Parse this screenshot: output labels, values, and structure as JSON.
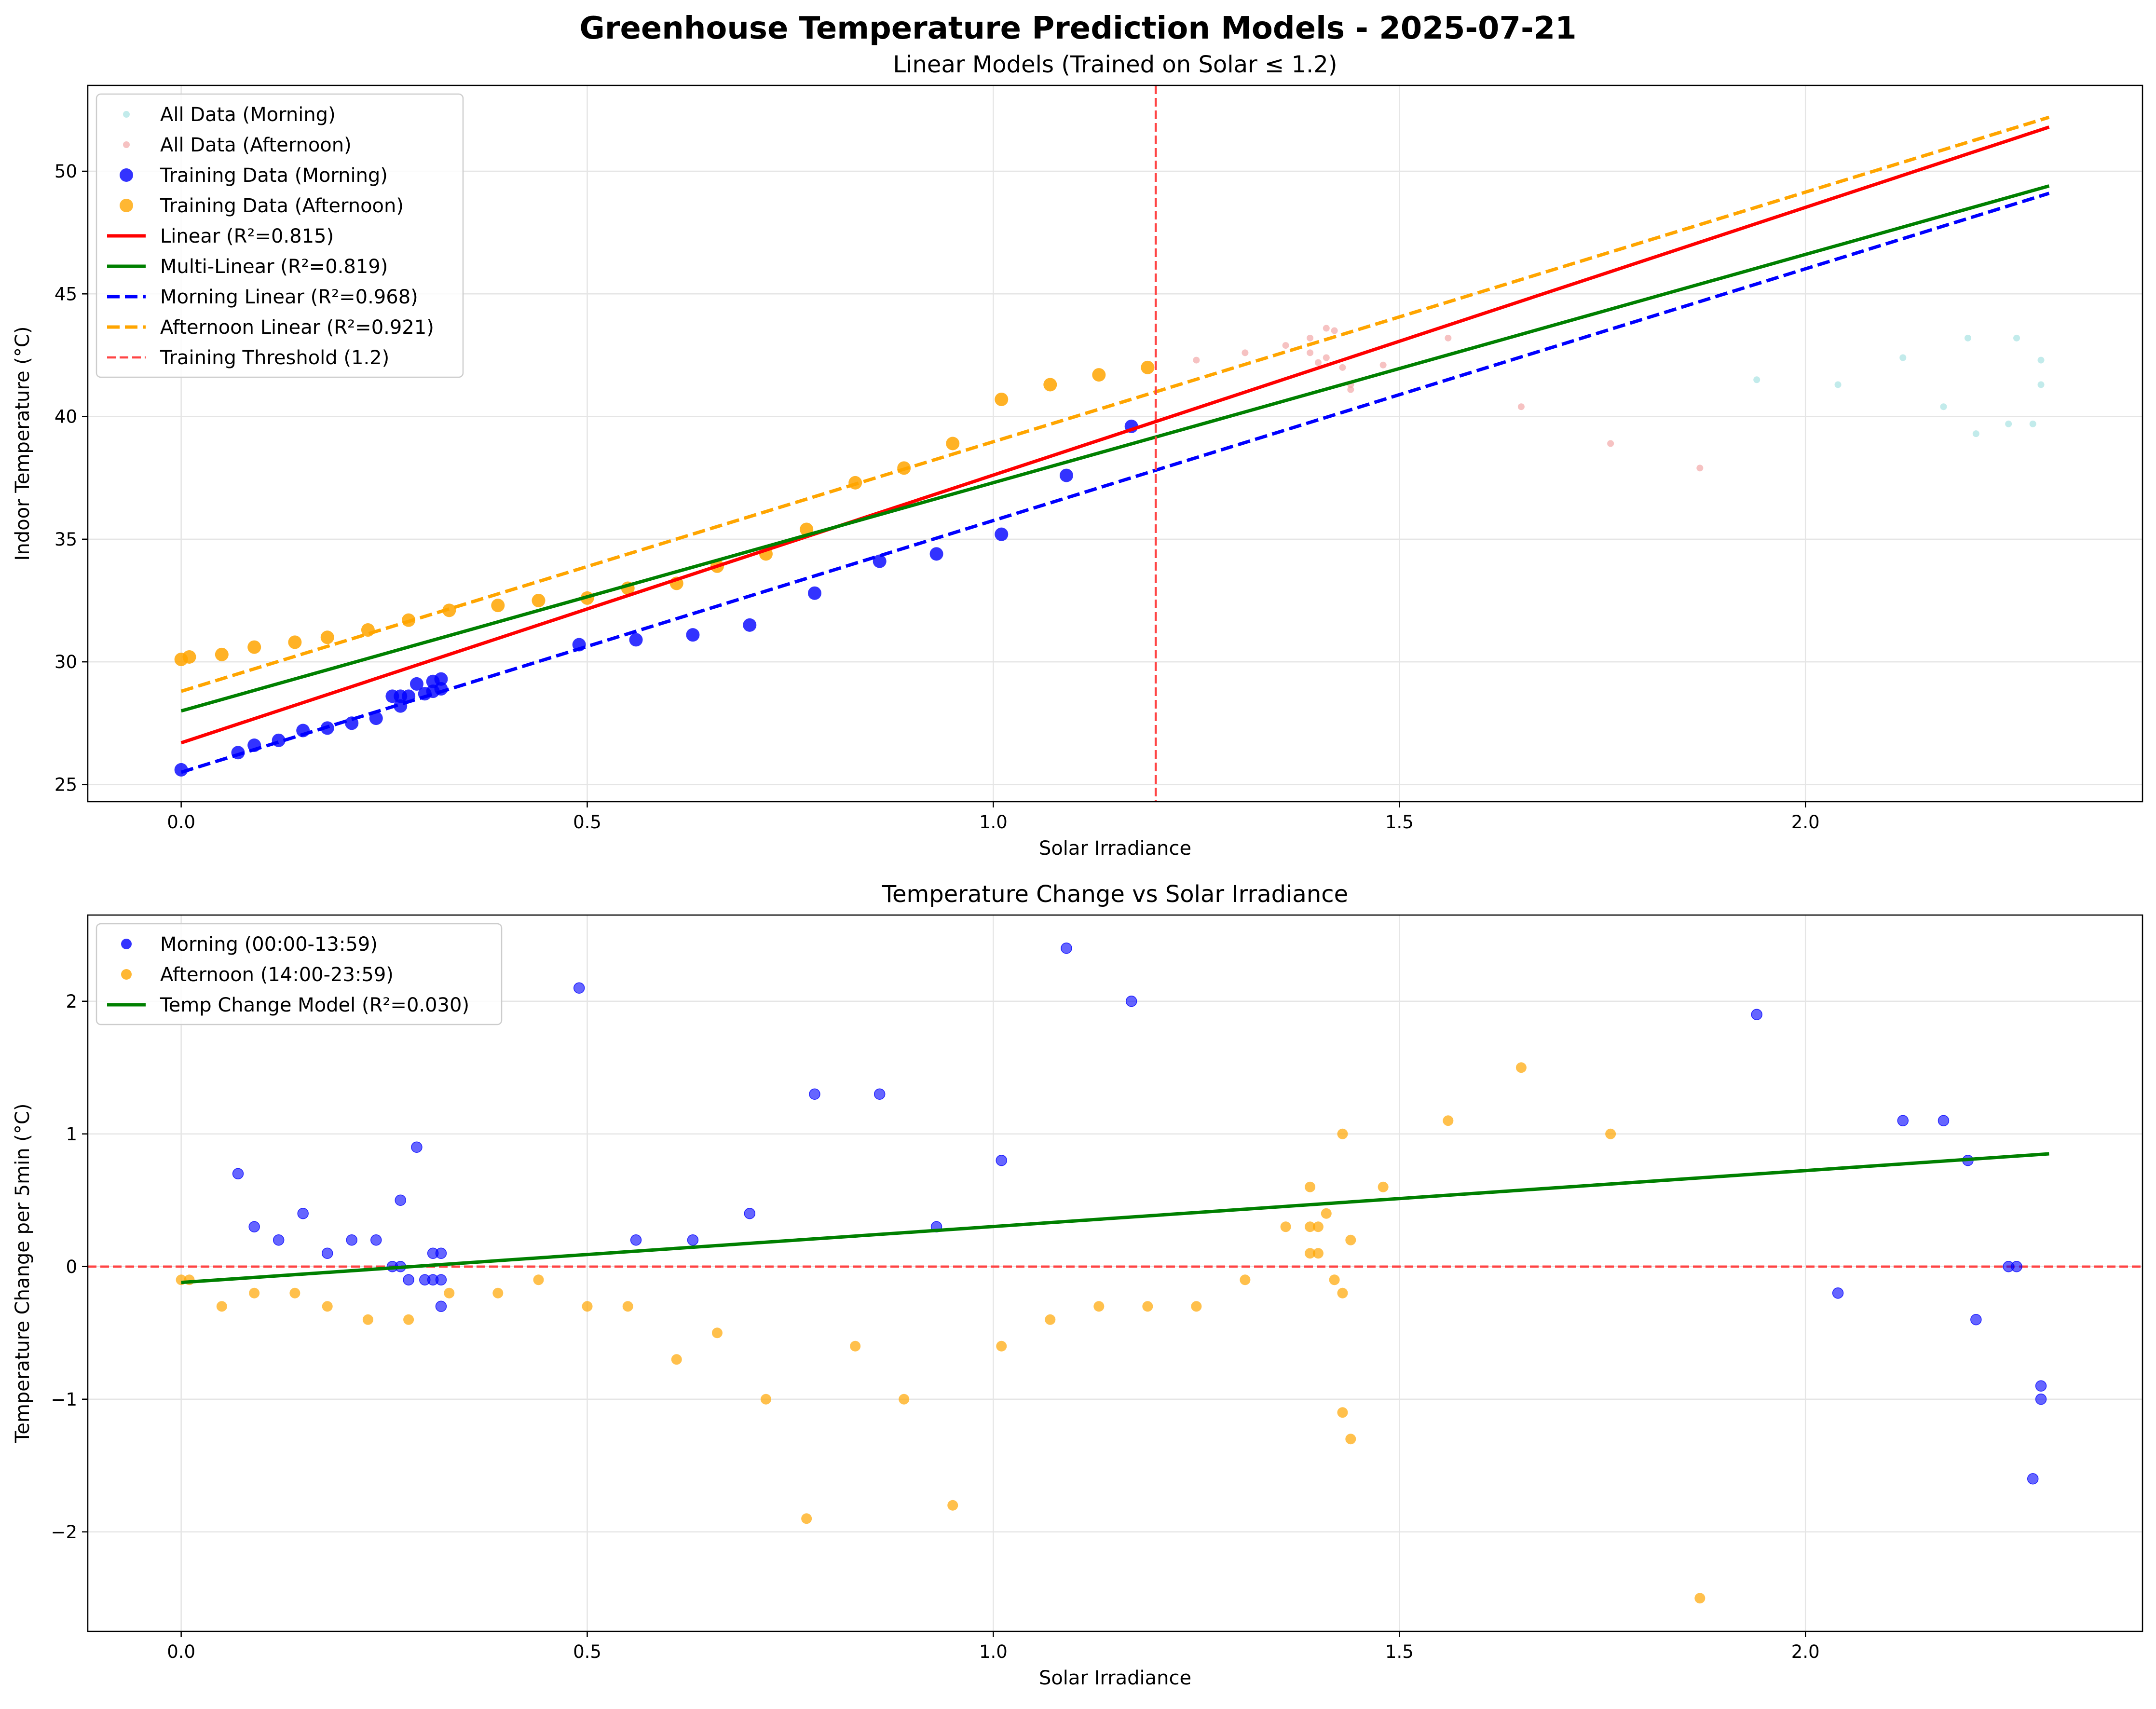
{
  "figure_title": "Greenhouse Temperature Prediction Models - 2025-07-21",
  "colors": {
    "morning": "#0000ff",
    "afternoon": "#ffa500",
    "linear": "#ff0000",
    "multi_linear": "#008000",
    "all_morning": "#a8e3e3",
    "all_afternoon": "#f2a8a8",
    "threshold": "#ff4444",
    "grid": "#e5e5e5"
  },
  "chart_data": [
    {
      "type": "scatter",
      "title": "Linear Models (Trained on Solar ≤ 1.2)",
      "xlabel": "Solar Irradiance",
      "ylabel": "Indoor Temperature (°C)",
      "xlim": [
        -0.115,
        2.415
      ],
      "ylim": [
        24.3,
        53.5
      ],
      "xticks": [
        0.0,
        0.5,
        1.0,
        1.5,
        2.0
      ],
      "xtick_labels": [
        "0.0",
        "0.5",
        "1.0",
        "1.5",
        "2.0"
      ],
      "yticks": [
        25,
        30,
        35,
        40,
        45,
        50
      ],
      "ytick_labels": [
        "25",
        "30",
        "35",
        "40",
        "45",
        "50"
      ],
      "grid": true,
      "legend_position": "upper left",
      "legend": [
        {
          "label": "All Data (Morning)",
          "kind": "small-dot",
          "color": "#a8e3e3"
        },
        {
          "label": "All Data (Afternoon)",
          "kind": "small-dot",
          "color": "#f2a8a8"
        },
        {
          "label": "Training Data (Morning)",
          "kind": "dot",
          "color": "#0000ff"
        },
        {
          "label": "Training Data (Afternoon)",
          "kind": "dot",
          "color": "#ffa500"
        },
        {
          "label": "Linear (R²=0.815)",
          "kind": "line",
          "color": "#ff0000"
        },
        {
          "label": "Multi-Linear (R²=0.819)",
          "kind": "line",
          "color": "#008000"
        },
        {
          "label": "Morning Linear (R²=0.968)",
          "kind": "dashed",
          "color": "#0000ff"
        },
        {
          "label": "Afternoon Linear (R²=0.921)",
          "kind": "dashed",
          "color": "#ffa500"
        },
        {
          "label": "Training Threshold (1.2)",
          "kind": "dashed-thin",
          "color": "#ff4444"
        }
      ],
      "threshold_x": 1.2,
      "lines": [
        {
          "label": "Linear (R²=0.815)",
          "x": [
            0.0,
            2.3
          ],
          "y": [
            26.7,
            51.8
          ],
          "color": "#ff0000",
          "dash": false
        },
        {
          "label": "Multi-Linear (R²=0.819)",
          "x": [
            0.0,
            2.3
          ],
          "y": [
            28.0,
            49.4
          ],
          "color": "#008000",
          "dash": false
        },
        {
          "label": "Morning Linear (R²=0.968)",
          "x": [
            0.0,
            2.3
          ],
          "y": [
            25.5,
            49.1
          ],
          "color": "#0000ff",
          "dash": true
        },
        {
          "label": "Afternoon Linear (R²=0.921)",
          "x": [
            0.0,
            2.3
          ],
          "y": [
            28.8,
            52.2
          ],
          "color": "#ffa500",
          "dash": true
        }
      ],
      "all_morning": [
        [
          1.94,
          41.5
        ],
        [
          2.04,
          41.3
        ],
        [
          2.12,
          42.4
        ],
        [
          2.17,
          40.4
        ],
        [
          2.2,
          43.2
        ],
        [
          2.21,
          39.3
        ],
        [
          2.25,
          39.7
        ],
        [
          2.26,
          43.2
        ],
        [
          2.28,
          39.7
        ],
        [
          2.29,
          42.3
        ],
        [
          2.29,
          41.3
        ]
      ],
      "all_afternoon": [
        [
          1.25,
          42.3
        ],
        [
          1.31,
          42.6
        ],
        [
          1.36,
          42.9
        ],
        [
          1.39,
          43.2
        ],
        [
          1.39,
          42.6
        ],
        [
          1.4,
          42.2
        ],
        [
          1.41,
          42.4
        ],
        [
          1.41,
          43.6
        ],
        [
          1.42,
          43.5
        ],
        [
          1.43,
          42.0
        ],
        [
          1.44,
          41.1
        ],
        [
          1.44,
          41.3
        ],
        [
          1.48,
          42.1
        ],
        [
          1.56,
          43.2
        ],
        [
          1.65,
          40.4
        ],
        [
          1.76,
          38.9
        ],
        [
          1.87,
          37.9
        ]
      ],
      "train_morning": [
        [
          0.0,
          25.6
        ],
        [
          0.07,
          26.3
        ],
        [
          0.09,
          26.6
        ],
        [
          0.12,
          26.8
        ],
        [
          0.15,
          27.2
        ],
        [
          0.18,
          27.3
        ],
        [
          0.21,
          27.5
        ],
        [
          0.24,
          27.7
        ],
        [
          0.26,
          28.6
        ],
        [
          0.27,
          28.2
        ],
        [
          0.27,
          28.6
        ],
        [
          0.28,
          28.6
        ],
        [
          0.29,
          29.1
        ],
        [
          0.3,
          28.7
        ],
        [
          0.31,
          29.2
        ],
        [
          0.31,
          28.8
        ],
        [
          0.32,
          29.3
        ],
        [
          0.32,
          28.9
        ],
        [
          0.49,
          30.7
        ],
        [
          0.56,
          30.9
        ],
        [
          0.63,
          31.1
        ],
        [
          0.7,
          31.5
        ],
        [
          0.78,
          32.8
        ],
        [
          0.86,
          34.1
        ],
        [
          0.93,
          34.4
        ],
        [
          1.01,
          35.2
        ],
        [
          1.09,
          37.6
        ],
        [
          1.17,
          39.6
        ]
      ],
      "train_afternoon": [
        [
          0.0,
          30.1
        ],
        [
          0.01,
          30.2
        ],
        [
          0.05,
          30.3
        ],
        [
          0.09,
          30.6
        ],
        [
          0.14,
          30.8
        ],
        [
          0.18,
          31.0
        ],
        [
          0.23,
          31.3
        ],
        [
          0.28,
          31.7
        ],
        [
          0.33,
          32.1
        ],
        [
          0.39,
          32.3
        ],
        [
          0.44,
          32.5
        ],
        [
          0.5,
          32.6
        ],
        [
          0.55,
          33.0
        ],
        [
          0.61,
          33.2
        ],
        [
          0.66,
          33.9
        ],
        [
          0.72,
          34.4
        ],
        [
          0.77,
          35.4
        ],
        [
          0.83,
          37.3
        ],
        [
          0.89,
          37.9
        ],
        [
          0.95,
          38.9
        ],
        [
          1.01,
          40.7
        ],
        [
          1.07,
          41.3
        ],
        [
          1.13,
          41.7
        ],
        [
          1.19,
          42.0
        ]
      ]
    },
    {
      "type": "scatter",
      "title": "Temperature Change vs Solar Irradiance",
      "xlabel": "Solar Irradiance",
      "ylabel": "Temperature Change per 5min (°C)",
      "xlim": [
        -0.115,
        2.415
      ],
      "ylim": [
        -2.75,
        2.65
      ],
      "xticks": [
        0.0,
        0.5,
        1.0,
        1.5,
        2.0
      ],
      "xtick_labels": [
        "0.0",
        "0.5",
        "1.0",
        "1.5",
        "2.0"
      ],
      "yticks": [
        -2,
        -1,
        0,
        1,
        2
      ],
      "ytick_labels": [
        "−2",
        "−1",
        "0",
        "1",
        "2"
      ],
      "grid": true,
      "legend_position": "upper left",
      "legend": [
        {
          "label": "Morning (00:00-13:59)",
          "kind": "dot",
          "color": "#0000ff"
        },
        {
          "label": "Afternoon (14:00-23:59)",
          "kind": "dot",
          "color": "#ffa500"
        },
        {
          "label": "Temp Change Model (R²=0.030)",
          "kind": "line",
          "color": "#008000"
        }
      ],
      "zero_line_y": 0,
      "model_line": {
        "label": "Temp Change Model (R²=0.030)",
        "x": [
          0.0,
          2.3
        ],
        "y": [
          -0.12,
          0.85
        ]
      },
      "morning": [
        [
          0.07,
          0.7
        ],
        [
          0.09,
          0.3
        ],
        [
          0.12,
          0.2
        ],
        [
          0.15,
          0.4
        ],
        [
          0.18,
          0.1
        ],
        [
          0.21,
          0.2
        ],
        [
          0.24,
          0.2
        ],
        [
          0.26,
          0.0
        ],
        [
          0.27,
          0.5
        ],
        [
          0.27,
          0.0
        ],
        [
          0.28,
          -0.1
        ],
        [
          0.29,
          0.9
        ],
        [
          0.3,
          -0.1
        ],
        [
          0.31,
          0.1
        ],
        [
          0.31,
          -0.1
        ],
        [
          0.32,
          0.1
        ],
        [
          0.32,
          -0.3
        ],
        [
          0.32,
          -0.1
        ],
        [
          0.49,
          2.1
        ],
        [
          0.56,
          0.2
        ],
        [
          0.63,
          0.2
        ],
        [
          0.7,
          0.4
        ],
        [
          0.78,
          1.3
        ],
        [
          0.86,
          1.3
        ],
        [
          0.93,
          0.3
        ],
        [
          1.01,
          0.8
        ],
        [
          1.09,
          2.4
        ],
        [
          1.17,
          2.0
        ],
        [
          1.94,
          1.9
        ],
        [
          2.04,
          -0.2
        ],
        [
          2.12,
          1.1
        ],
        [
          2.17,
          1.1
        ],
        [
          2.2,
          0.8
        ],
        [
          2.21,
          -0.4
        ],
        [
          2.25,
          0.0
        ],
        [
          2.26,
          0.0
        ],
        [
          2.28,
          -1.6
        ],
        [
          2.29,
          -0.9
        ],
        [
          2.29,
          -1.0
        ]
      ],
      "afternoon": [
        [
          0.0,
          -0.1
        ],
        [
          0.01,
          -0.1
        ],
        [
          0.05,
          -0.3
        ],
        [
          0.09,
          -0.2
        ],
        [
          0.14,
          -0.2
        ],
        [
          0.18,
          -0.3
        ],
        [
          0.23,
          -0.4
        ],
        [
          0.28,
          -0.4
        ],
        [
          0.33,
          -0.2
        ],
        [
          0.39,
          -0.2
        ],
        [
          0.44,
          -0.1
        ],
        [
          0.5,
          -0.3
        ],
        [
          0.55,
          -0.3
        ],
        [
          0.61,
          -0.7
        ],
        [
          0.66,
          -0.5
        ],
        [
          0.72,
          -1.0
        ],
        [
          0.77,
          -1.9
        ],
        [
          0.83,
          -0.6
        ],
        [
          0.89,
          -1.0
        ],
        [
          0.95,
          -1.8
        ],
        [
          1.01,
          -0.6
        ],
        [
          1.07,
          -0.4
        ],
        [
          1.13,
          -0.3
        ],
        [
          1.19,
          -0.3
        ],
        [
          1.25,
          -0.3
        ],
        [
          1.31,
          -0.1
        ],
        [
          1.36,
          0.3
        ],
        [
          1.39,
          0.6
        ],
        [
          1.39,
          0.3
        ],
        [
          1.39,
          0.1
        ],
        [
          1.4,
          0.3
        ],
        [
          1.4,
          0.1
        ],
        [
          1.41,
          0.4
        ],
        [
          1.42,
          -0.1
        ],
        [
          1.43,
          1.0
        ],
        [
          1.43,
          -0.2
        ],
        [
          1.43,
          -1.1
        ],
        [
          1.44,
          0.2
        ],
        [
          1.44,
          -1.3
        ],
        [
          1.48,
          0.6
        ],
        [
          1.56,
          1.1
        ],
        [
          1.65,
          1.5
        ],
        [
          1.76,
          1.0
        ],
        [
          1.87,
          -2.5
        ]
      ]
    }
  ]
}
